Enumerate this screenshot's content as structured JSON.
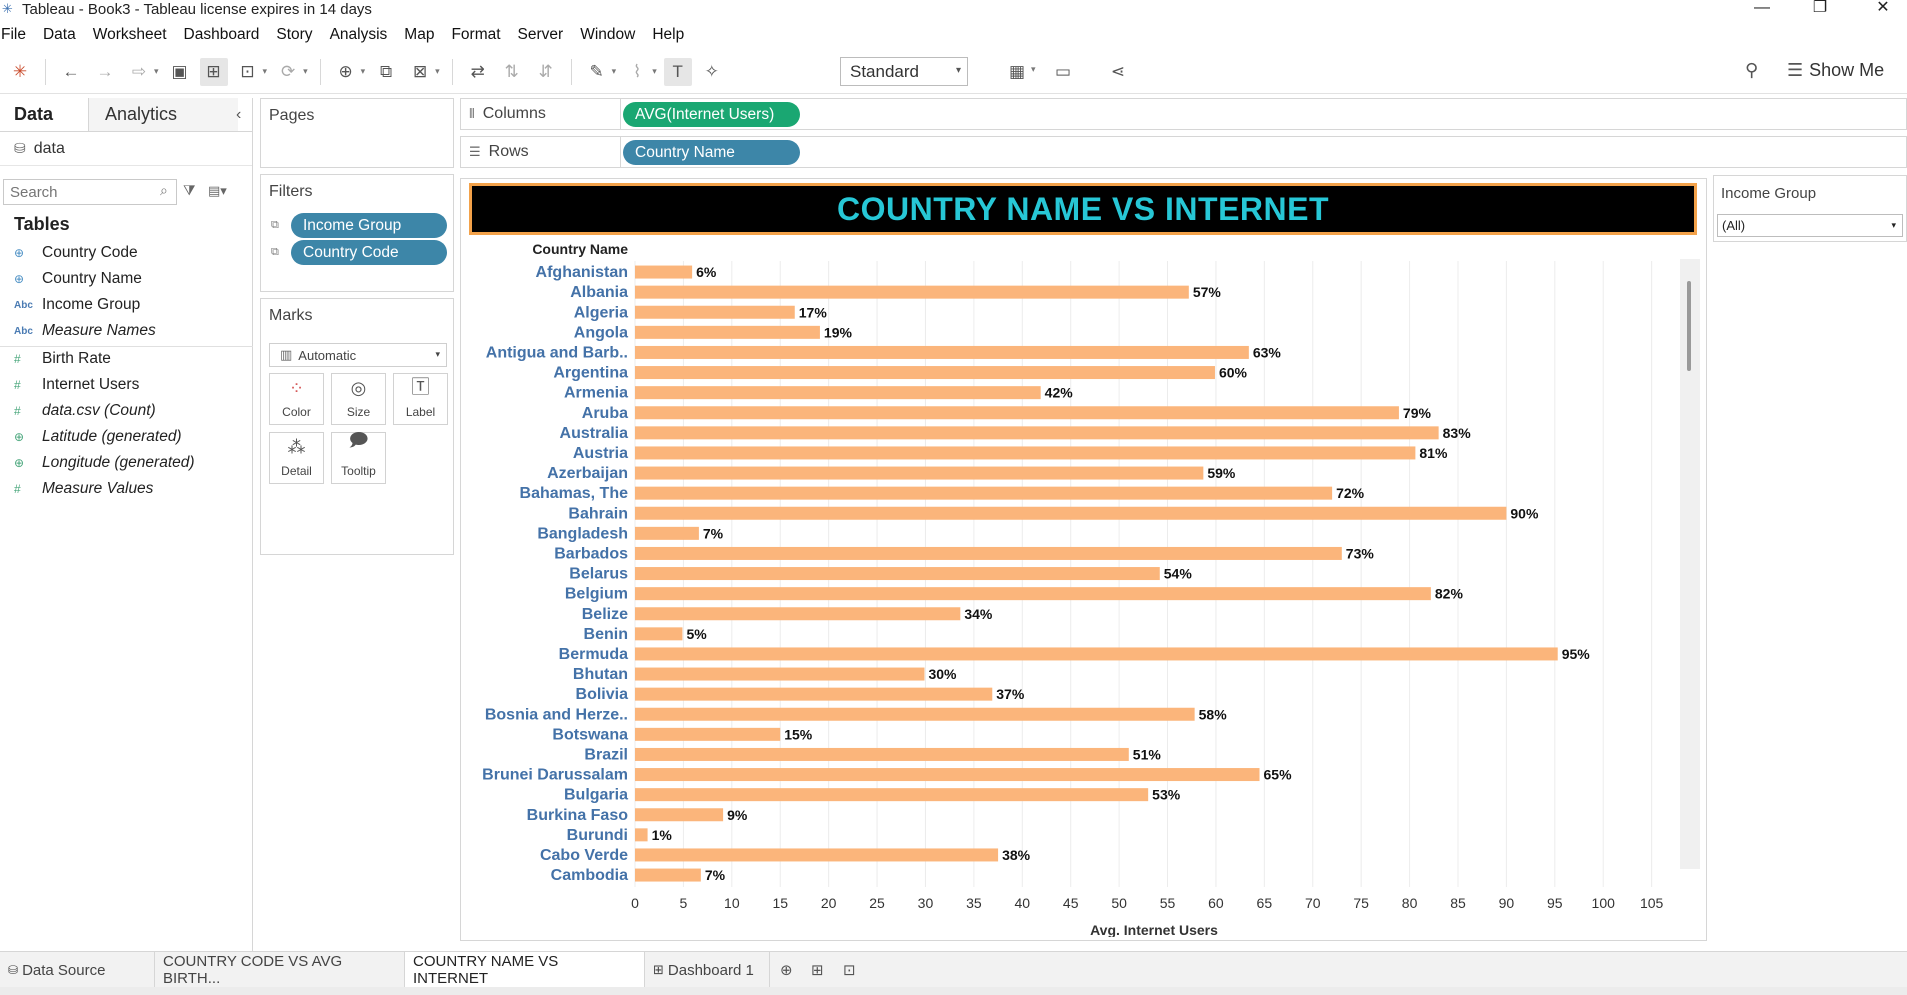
{
  "window": {
    "title": "Tableau - Book3 - Tableau license expires in 14 days"
  },
  "menu": [
    "File",
    "Data",
    "Worksheet",
    "Dashboard",
    "Story",
    "Analysis",
    "Map",
    "Format",
    "Server",
    "Window",
    "Help"
  ],
  "toolbar": {
    "fit_select": "Standard",
    "show_me": "Show Me"
  },
  "left_pane": {
    "tab_data": "Data",
    "tab_analytics": "Analytics",
    "datasource": "data",
    "search_placeholder": "Search",
    "tables_heading": "Tables",
    "dimensions": [
      {
        "label": "Country Code",
        "icon": "globe-icon",
        "italic": false
      },
      {
        "label": "Country Name",
        "icon": "globe-icon",
        "italic": false
      },
      {
        "label": "Income Group",
        "icon": "abc-icon",
        "italic": false
      },
      {
        "label": "Measure Names",
        "icon": "abc-icon",
        "italic": true
      }
    ],
    "measures": [
      {
        "label": "Birth Rate",
        "icon": "hash-icon",
        "italic": false
      },
      {
        "label": "Internet Users",
        "icon": "hash-icon",
        "italic": false
      },
      {
        "label": "data.csv (Count)",
        "icon": "hash-icon",
        "italic": true
      },
      {
        "label": "Latitude (generated)",
        "icon": "globe-icon",
        "italic": true
      },
      {
        "label": "Longitude (generated)",
        "icon": "globe-icon",
        "italic": true
      },
      {
        "label": "Measure Values",
        "icon": "hash-icon",
        "italic": true
      }
    ]
  },
  "shelves": {
    "pages": "Pages",
    "filters": "Filters",
    "filter_pills": [
      "Income Group",
      "Country Code"
    ],
    "marks": "Marks",
    "marks_type": "Automatic",
    "mark_buttons": [
      "Color",
      "Size",
      "Label",
      "Detail",
      "Tooltip"
    ],
    "columns_label": "Columns",
    "columns_pill": "AVG(Internet Users)",
    "rows_label": "Rows",
    "rows_pill": "Country Name"
  },
  "filter_card": {
    "title": "Income Group",
    "value": "(All)"
  },
  "bottom_tabs": [
    "Data Source",
    "COUNTRY CODE VS AVG BIRTH...",
    "COUNTRY NAME VS INTERNET",
    "Dashboard 1"
  ],
  "colors": {
    "bar": "#fbb57b",
    "label_blue": "#4472a8",
    "title_bg": "#000000",
    "title_text": "#27c7d6",
    "title_border": "#f3a24a"
  },
  "chart_data": {
    "type": "bar",
    "orientation": "horizontal",
    "title": "COUNTRY NAME VS INTERNET",
    "row_header": "Country Name",
    "xlabel": "Avg. Internet Users",
    "xlim": [
      0,
      107
    ],
    "xticks": [
      0,
      5,
      10,
      15,
      20,
      25,
      30,
      35,
      40,
      45,
      50,
      55,
      60,
      65,
      70,
      75,
      80,
      85,
      90,
      95,
      100,
      105
    ],
    "grid": "vertical",
    "categories": [
      "Afghanistan",
      "Albania",
      "Algeria",
      "Angola",
      "Antigua and Barb..",
      "Argentina",
      "Armenia",
      "Aruba",
      "Australia",
      "Austria",
      "Azerbaijan",
      "Bahamas, The",
      "Bahrain",
      "Bangladesh",
      "Barbados",
      "Belarus",
      "Belgium",
      "Belize",
      "Benin",
      "Bermuda",
      "Bhutan",
      "Bolivia",
      "Bosnia and Herze..",
      "Botswana",
      "Brazil",
      "Brunei Darussalam",
      "Bulgaria",
      "Burkina Faso",
      "Burundi",
      "Cabo Verde",
      "Cambodia"
    ],
    "values": [
      5.9,
      57.2,
      16.5,
      19.1,
      63.4,
      59.9,
      41.9,
      78.9,
      83.0,
      80.6,
      58.7,
      72.0,
      90.0,
      6.6,
      73.0,
      54.2,
      82.2,
      33.6,
      4.9,
      95.3,
      29.9,
      36.9,
      57.8,
      15.0,
      51.0,
      64.5,
      53.0,
      9.1,
      1.3,
      37.5,
      6.8
    ],
    "data_labels": [
      "6%",
      "57%",
      "17%",
      "19%",
      "63%",
      "60%",
      "42%",
      "79%",
      "83%",
      "81%",
      "59%",
      "72%",
      "90%",
      "7%",
      "73%",
      "54%",
      "82%",
      "34%",
      "5%",
      "95%",
      "30%",
      "37%",
      "58%",
      "15%",
      "51%",
      "65%",
      "53%",
      "9%",
      "1%",
      "38%",
      "7%"
    ]
  }
}
